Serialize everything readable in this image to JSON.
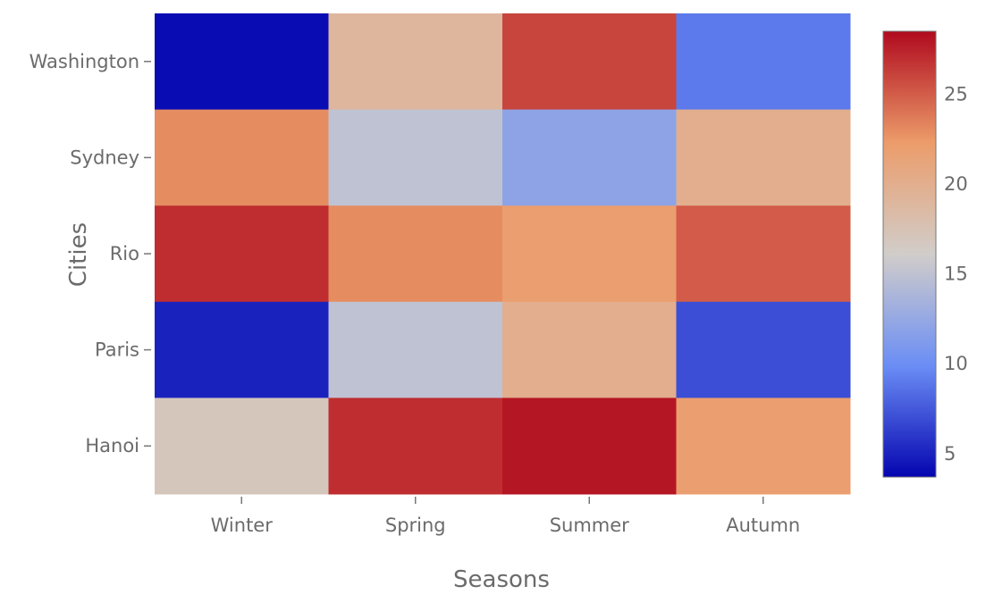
{
  "chart_data": {
    "type": "heatmap",
    "xlabel": "Seasons",
    "ylabel": "Cities",
    "x_categories": [
      "Winter",
      "Spring",
      "Summer",
      "Autumn"
    ],
    "y_categories": [
      "Washington",
      "Sydney",
      "Rio",
      "Paris",
      "Hanoi"
    ],
    "values": [
      [
        4,
        19,
        26,
        9
      ],
      [
        23,
        15,
        12,
        20
      ],
      [
        27,
        23,
        22,
        25
      ],
      [
        5,
        15,
        20,
        7
      ],
      [
        17,
        27,
        28,
        22
      ]
    ],
    "colorscale": {
      "name": "coolwarm",
      "min": 3.7,
      "max": 28.5,
      "ticks": [
        5,
        10,
        15,
        20,
        25
      ],
      "colors": [
        "#0505b0",
        "#6b8ef5",
        "#d1cdca",
        "#ec9c6a",
        "#b00a1e"
      ]
    }
  }
}
